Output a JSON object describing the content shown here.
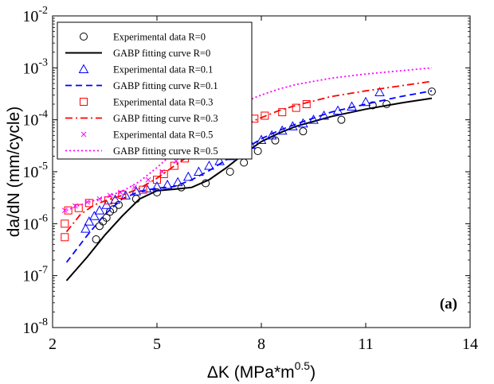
{
  "chart_data": {
    "type": "line",
    "xlabel_main": "ΔK (MPa*m",
    "xlabel_sup": "0.5",
    "xlabel_close": ")",
    "ylabel": "da/dN (mm/cycle)",
    "xscale": "linear",
    "yscale": "log",
    "xlim": [
      2,
      14
    ],
    "ylim": [
      1e-08,
      0.01
    ],
    "x_ticks": [
      2,
      5,
      8,
      11,
      14
    ],
    "y_tick_base": "10",
    "y_ticks": [
      {
        "value": 1e-08,
        "exp": "-8"
      },
      {
        "value": 1e-07,
        "exp": "-7"
      },
      {
        "value": 1e-06,
        "exp": "-6"
      },
      {
        "value": 1e-05,
        "exp": "-5"
      },
      {
        "value": 0.0001,
        "exp": "-4"
      },
      {
        "value": 0.001,
        "exp": "-3"
      },
      {
        "value": 0.01,
        "exp": "-2"
      }
    ],
    "grid": false,
    "legend_position": "top-left",
    "annotation": "(a)",
    "series": [
      {
        "name": "Experimental data R=0",
        "kind": "scatter",
        "marker": "circle",
        "color": "#000000",
        "x": [
          3.25,
          3.35,
          3.45,
          3.55,
          3.65,
          3.75,
          3.9,
          4.4,
          5.0,
          5.7,
          6.4,
          7.1,
          7.5,
          7.9,
          8.4,
          9.2,
          10.3,
          11.2,
          11.6,
          12.9
        ],
        "y": [
          5e-07,
          9e-07,
          1.1e-06,
          1.3e-06,
          1.7e-06,
          1.9e-06,
          2.3e-06,
          3e-06,
          4e-06,
          5e-06,
          6e-06,
          1e-05,
          1.5e-05,
          2.5e-05,
          4e-05,
          6e-05,
          0.0001,
          0.00019,
          0.0002,
          0.00035
        ]
      },
      {
        "name": "GABP fitting curve R=0",
        "kind": "line",
        "dash": "solid",
        "color": "#000000",
        "x": [
          2.4,
          3.0,
          3.5,
          4.0,
          4.5,
          5.0,
          5.5,
          6.0,
          6.5,
          7.0,
          7.5,
          8.0,
          8.5,
          9.0,
          10.0,
          11.0,
          12.0,
          12.9
        ],
        "y": [
          8e-08,
          2.3e-07,
          6e-07,
          1.4e-06,
          3e-06,
          4.3e-06,
          4.6e-06,
          5e-06,
          7e-06,
          1.2e-05,
          2.2e-05,
          3.8e-05,
          5.5e-05,
          7.5e-05,
          0.000115,
          0.00016,
          0.00021,
          0.00026
        ]
      },
      {
        "name": "Experimental data R=0.1",
        "kind": "scatter",
        "marker": "triangle",
        "color": "#0000ff",
        "x": [
          2.95,
          3.05,
          3.2,
          3.35,
          3.55,
          3.8,
          4.1,
          4.4,
          4.7,
          5.0,
          5.3,
          5.6,
          5.9,
          6.2,
          6.5,
          6.8,
          7.1,
          7.4,
          7.7,
          8.0,
          8.3,
          8.6,
          8.9,
          9.2,
          9.5,
          9.8,
          10.2,
          10.6,
          11.0,
          11.4
        ],
        "y": [
          8e-07,
          1.1e-06,
          1.4e-06,
          1.8e-06,
          2.3e-06,
          2.9e-06,
          3.5e-06,
          4.2e-06,
          4.8e-06,
          5.2e-06,
          5.6e-06,
          6.3e-06,
          8e-06,
          1e-05,
          1.3e-05,
          1.6e-05,
          2e-05,
          2.6e-05,
          3.3e-05,
          4.1e-05,
          5e-05,
          6.2e-05,
          7.5e-05,
          8.5e-05,
          0.0001,
          0.00012,
          0.00015,
          0.00018,
          0.00022,
          0.00034
        ]
      },
      {
        "name": "GABP fitting curve R=0.1",
        "kind": "line",
        "dash": "dashed",
        "color": "#0000ff",
        "x": [
          2.4,
          3.0,
          3.5,
          4.0,
          4.5,
          5.0,
          5.5,
          6.0,
          6.5,
          7.0,
          7.5,
          8.0,
          8.5,
          9.0,
          10.0,
          11.0,
          12.0,
          12.9
        ],
        "y": [
          1.8e-07,
          6e-07,
          1.5e-06,
          3e-06,
          4.2e-06,
          4.8e-06,
          5.2e-06,
          7e-06,
          1.05e-05,
          1.7e-05,
          2.7e-05,
          4.3e-05,
          6.2e-05,
          8.3e-05,
          0.00014,
          0.0002,
          0.00028,
          0.00036
        ]
      },
      {
        "name": "Experimental data R=0.3",
        "kind": "scatter",
        "marker": "square",
        "color": "#ff0000",
        "x": [
          2.35,
          2.35,
          2.45,
          2.75,
          3.05,
          3.6,
          4.0,
          4.6,
          5.0,
          5.2,
          5.5,
          5.8,
          6.1,
          6.4,
          6.7,
          7.0,
          7.3,
          7.8,
          8.1,
          8.6,
          9.0,
          9.3
        ],
        "y": [
          5.5e-07,
          1e-06,
          1.8e-06,
          2e-06,
          2.5e-06,
          2.8e-06,
          3.6e-06,
          4.5e-06,
          7e-06,
          9e-06,
          1.3e-05,
          1.8e-05,
          2.5e-05,
          3.2e-05,
          4.2e-05,
          6e-05,
          8e-05,
          0.000105,
          0.00012,
          0.00014,
          0.00017,
          0.0002
        ]
      },
      {
        "name": "GABP fitting curve R=0.3",
        "kind": "line",
        "dash": "dashdot",
        "color": "#ff0000",
        "x": [
          2.4,
          2.8,
          3.2,
          3.6,
          4.0,
          4.5,
          5.0,
          5.5,
          6.0,
          6.5,
          7.0,
          7.5,
          8.0,
          8.5,
          9.0,
          10.0,
          11.0,
          12.0,
          12.9
        ],
        "y": [
          7e-07,
          1.5e-06,
          2.3e-06,
          2.9e-06,
          3.5e-06,
          4.8e-06,
          7.5e-06,
          1.3e-05,
          2.2e-05,
          3.6e-05,
          5.5e-05,
          8e-05,
          0.00011,
          0.00015,
          0.00019,
          0.00028,
          0.00036,
          0.00045,
          0.00055
        ]
      },
      {
        "name": "Experimental data R=0.5",
        "kind": "scatter",
        "marker": "x",
        "color": "#ff00ff",
        "x": [
          2.35,
          2.65,
          3.0,
          3.35,
          3.65,
          3.95,
          4.35,
          4.75,
          5.15,
          5.55,
          5.9,
          6.15,
          6.5
        ],
        "y": [
          1.8e-06,
          2.2e-06,
          2.6e-06,
          3e-06,
          3.5e-06,
          4e-06,
          5e-06,
          7e-06,
          1e-05,
          1.6e-05,
          2.4e-05,
          4e-05,
          0.0001
        ]
      },
      {
        "name": "GABP fitting curve R=0.5",
        "kind": "line",
        "dash": "dotted",
        "color": "#ff00ff",
        "x": [
          2.4,
          2.8,
          3.2,
          3.6,
          4.0,
          4.5,
          5.0,
          5.5,
          6.0,
          6.5,
          7.0,
          7.5,
          8.0,
          8.5,
          9.0,
          10.0,
          11.0,
          12.0,
          12.9
        ],
        "y": [
          1.8e-06,
          2.3e-06,
          2.8e-06,
          3.4e-06,
          4.2e-06,
          6.5e-06,
          1.2e-05,
          2.4e-05,
          4.8e-05,
          9e-05,
          0.00015,
          0.00022,
          0.0003,
          0.00039,
          0.00048,
          0.00063,
          0.00076,
          0.00088,
          0.001
        ]
      }
    ]
  }
}
